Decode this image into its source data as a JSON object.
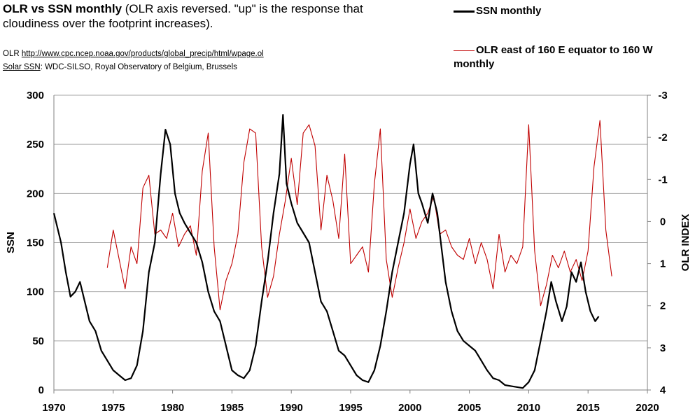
{
  "header": {
    "title_bold": "OLR vs SSN monthly",
    "title_rest": " (OLR axis reversed.  \"up\" is the response that cloudiness over the footprint increases).",
    "source_olr_prefix": "OLR ",
    "source_olr_link": "http://www.cpc.ncep.noaa.gov/products/global_precip/html/wpage.ol",
    "source_ssn_prefix": "Solar  SSN",
    "source_ssn_rest": ": WDC-SILSO,  Royal Observatory of Belgium,  Brussels"
  },
  "colors": {
    "ssn": "#000000",
    "olr": "#c00000",
    "grid": "#a6a6a6"
  },
  "chart_data": {
    "type": "line",
    "title": "OLR vs SSN monthly",
    "xlabel": "",
    "ylabel": "SSN",
    "y2label": "OLR INDEX",
    "xlim": [
      1970,
      2020
    ],
    "ylim": [
      0,
      300
    ],
    "y2lim": [
      4,
      -3
    ],
    "y2_reversed": true,
    "x_ticks": [
      "1970",
      "1975",
      "1980",
      "1985",
      "1990",
      "1995",
      "2000",
      "2005",
      "2010",
      "2015",
      "2020"
    ],
    "y_ticks": [
      "0",
      "50",
      "100",
      "150",
      "200",
      "250",
      "300"
    ],
    "y2_ticks": [
      "4",
      "3",
      "2",
      "1",
      "0",
      "-1",
      "-2",
      "-3"
    ],
    "grid": true,
    "legend_position": "top-right",
    "series": [
      {
        "name": "SSN monthly",
        "axis": "left",
        "x": [
          1970.0,
          1970.3,
          1970.6,
          1971.0,
          1971.4,
          1971.8,
          1972.2,
          1972.6,
          1973.0,
          1973.5,
          1974.0,
          1974.5,
          1975.0,
          1975.5,
          1976.0,
          1976.5,
          1977.0,
          1977.5,
          1978.0,
          1978.5,
          1979.0,
          1979.4,
          1979.8,
          1980.2,
          1980.6,
          1981.0,
          1981.5,
          1982.0,
          1982.5,
          1983.0,
          1983.5,
          1984.0,
          1984.5,
          1985.0,
          1985.5,
          1986.0,
          1986.5,
          1987.0,
          1987.5,
          1988.0,
          1988.5,
          1989.0,
          1989.3,
          1989.6,
          1990.0,
          1990.5,
          1991.0,
          1991.5,
          1992.0,
          1992.5,
          1993.0,
          1993.5,
          1994.0,
          1994.5,
          1995.0,
          1995.5,
          1996.0,
          1996.5,
          1997.0,
          1997.5,
          1998.0,
          1998.5,
          1999.0,
          1999.5,
          2000.0,
          2000.3,
          2000.7,
          2001.0,
          2001.5,
          2001.9,
          2002.3,
          2002.7,
          2003.0,
          2003.5,
          2004.0,
          2004.5,
          2005.0,
          2005.5,
          2006.0,
          2006.5,
          2007.0,
          2007.5,
          2008.0,
          2008.5,
          2009.0,
          2009.5,
          2010.0,
          2010.5,
          2011.0,
          2011.5,
          2011.9,
          2012.3,
          2012.8,
          2013.2,
          2013.6,
          2014.0,
          2014.4,
          2014.8,
          2015.2,
          2015.6,
          2015.9
        ],
        "values": [
          180,
          165,
          150,
          120,
          95,
          100,
          110,
          90,
          70,
          60,
          40,
          30,
          20,
          15,
          10,
          12,
          25,
          60,
          120,
          150,
          220,
          265,
          250,
          200,
          180,
          170,
          160,
          150,
          130,
          100,
          80,
          70,
          45,
          20,
          15,
          12,
          20,
          45,
          90,
          130,
          180,
          220,
          280,
          210,
          190,
          170,
          160,
          150,
          120,
          90,
          80,
          60,
          40,
          35,
          25,
          15,
          10,
          8,
          20,
          45,
          80,
          120,
          150,
          180,
          230,
          250,
          200,
          190,
          170,
          200,
          180,
          140,
          110,
          80,
          60,
          50,
          45,
          40,
          30,
          20,
          12,
          10,
          5,
          4,
          3,
          2,
          8,
          20,
          50,
          80,
          110,
          90,
          70,
          85,
          120,
          110,
          130,
          100,
          80,
          70,
          75
        ]
      },
      {
        "name": "OLR east of 160 E equator to 160 W monthly",
        "axis": "right",
        "x": [
          1974.5,
          1975.0,
          1975.5,
          1976.0,
          1976.5,
          1977.0,
          1977.5,
          1978.0,
          1978.5,
          1979.0,
          1979.5,
          1980.0,
          1980.5,
          1981.0,
          1981.5,
          1982.0,
          1982.5,
          1983.0,
          1983.5,
          1984.0,
          1984.5,
          1985.0,
          1985.5,
          1986.0,
          1986.5,
          1987.0,
          1987.5,
          1988.0,
          1988.5,
          1989.0,
          1989.5,
          1990.0,
          1990.5,
          1991.0,
          1991.5,
          1992.0,
          1992.5,
          1993.0,
          1993.5,
          1994.0,
          1994.5,
          1995.0,
          1995.5,
          1996.0,
          1996.5,
          1997.0,
          1997.5,
          1998.0,
          1998.5,
          1999.0,
          1999.5,
          2000.0,
          2000.5,
          2001.0,
          2001.5,
          2002.0,
          2002.5,
          2003.0,
          2003.5,
          2004.0,
          2004.5,
          2005.0,
          2005.5,
          2006.0,
          2006.5,
          2007.0,
          2007.5,
          2008.0,
          2008.5,
          2009.0,
          2009.5,
          2010.0,
          2010.5,
          2011.0,
          2011.5,
          2012.0,
          2012.5,
          2013.0,
          2013.5,
          2014.0,
          2014.5,
          2015.0,
          2015.5,
          2016.0,
          2016.5,
          2017.0
        ],
        "values": [
          1.1,
          0.2,
          0.9,
          1.6,
          0.6,
          1.0,
          -0.8,
          -1.1,
          0.3,
          0.2,
          0.4,
          -0.2,
          0.6,
          0.3,
          0.1,
          0.8,
          -1.2,
          -2.1,
          0.6,
          2.1,
          1.4,
          1.0,
          0.3,
          -1.4,
          -2.2,
          -2.1,
          0.6,
          1.8,
          1.3,
          0.3,
          -0.5,
          -1.5,
          -0.4,
          -2.1,
          -2.3,
          -1.8,
          0.2,
          -1.1,
          -0.5,
          0.4,
          -1.6,
          1.0,
          0.8,
          0.6,
          1.2,
          -0.9,
          -2.2,
          0.9,
          1.8,
          1.1,
          0.5,
          -0.3,
          0.4,
          0.0,
          -0.2,
          -0.6,
          0.3,
          0.2,
          0.6,
          0.8,
          0.9,
          0.4,
          1.0,
          0.5,
          0.9,
          1.6,
          0.3,
          1.2,
          0.8,
          1.0,
          0.6,
          -2.3,
          0.7,
          2.0,
          1.5,
          0.8,
          1.1,
          0.7,
          1.2,
          0.9,
          1.4,
          0.7,
          -1.3,
          -2.4,
          0.2,
          1.3
        ]
      }
    ]
  }
}
